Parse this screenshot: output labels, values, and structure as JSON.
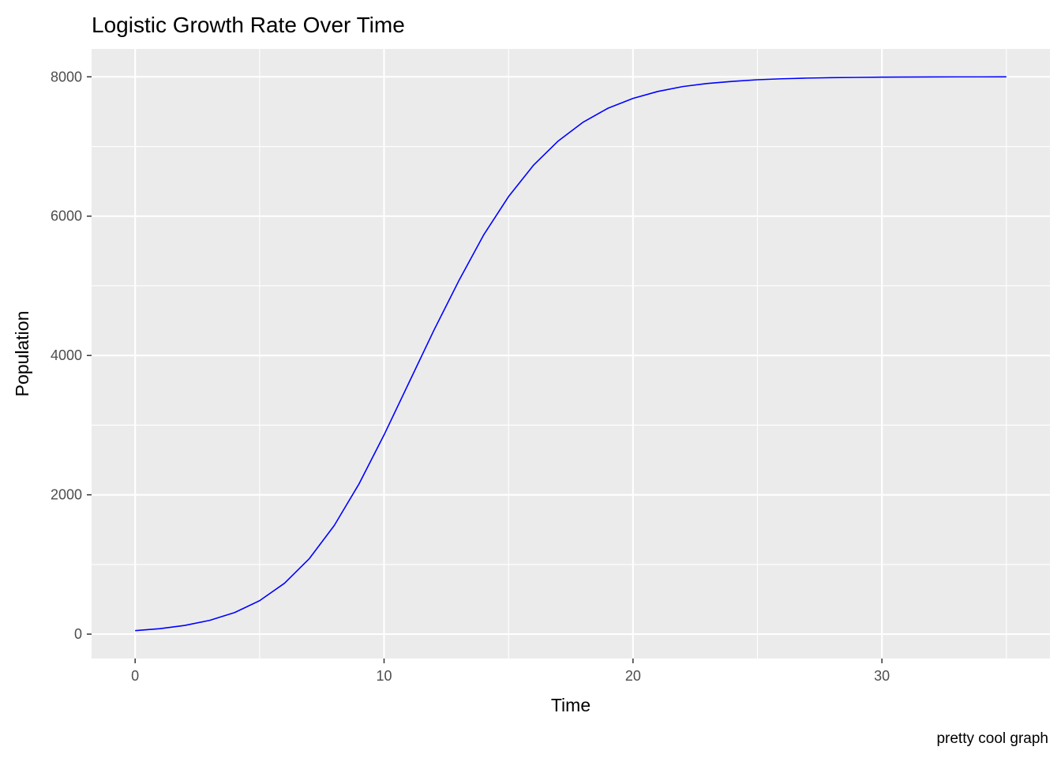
{
  "chart_data": {
    "type": "line",
    "title": "Logistic Growth Rate Over Time",
    "xlabel": "Time",
    "ylabel": "Population",
    "caption": "pretty cool graph",
    "xlim": [
      -1.75,
      36.75
    ],
    "ylim": [
      -350,
      8400
    ],
    "x_ticks": [
      0,
      10,
      20,
      30
    ],
    "x_tick_labels": [
      "0",
      "10",
      "20",
      "30"
    ],
    "x_minor_ticks": [
      5,
      15,
      25,
      35
    ],
    "y_ticks": [
      0,
      2000,
      4000,
      6000,
      8000
    ],
    "y_tick_labels": [
      "0",
      "2000",
      "4000",
      "6000",
      "8000"
    ],
    "y_minor_ticks": [
      1000,
      3000,
      5000,
      7000
    ],
    "grid": true,
    "legend": "none",
    "colors": {
      "panel_background": "#EBEBEB",
      "grid_line": "#FFFFFF",
      "series_line": "#0000FF",
      "tick_label": "#4D4D4D",
      "tick_mark": "#333333"
    },
    "series": [
      {
        "x": [
          0,
          1,
          2,
          3,
          4,
          5,
          6,
          7,
          8,
          9,
          10,
          11,
          12,
          13,
          14,
          15,
          16,
          17,
          18,
          19,
          20,
          21,
          22,
          23,
          24,
          25,
          26,
          27,
          28,
          29,
          30,
          31,
          32,
          33,
          34,
          35
        ],
        "values": [
          50,
          79,
          125,
          198,
          310,
          480,
          730,
          1085,
          1560,
          2160,
          2860,
          3610,
          4360,
          5070,
          5730,
          6280,
          6730,
          7080,
          7350,
          7550,
          7690,
          7790,
          7860,
          7905,
          7935,
          7958,
          7972,
          7982,
          7988,
          7992,
          7995,
          7997,
          7998,
          7999,
          7999,
          8000
        ]
      }
    ]
  }
}
